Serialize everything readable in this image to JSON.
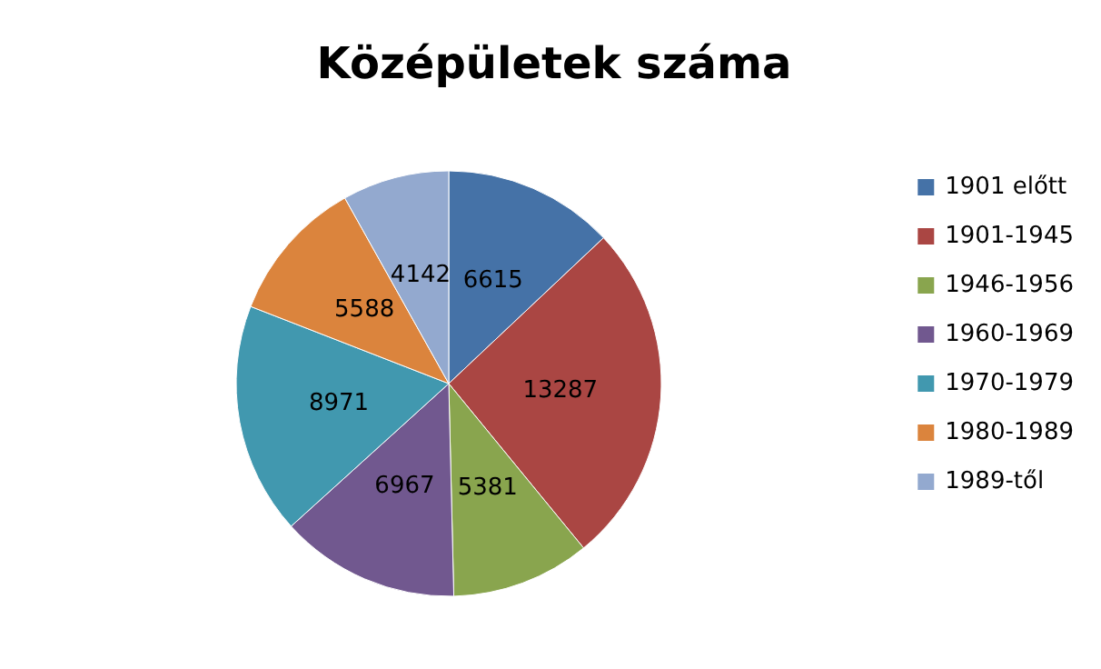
{
  "chart_data": {
    "type": "pie",
    "title": "Középületek száma",
    "categories": [
      "1901 előtt",
      "1901-1945",
      "1946-1956",
      "1960-1969",
      "1970-1979",
      "1980-1989",
      "1989-től"
    ],
    "values": [
      6615,
      13287,
      5381,
      6967,
      8971,
      5588,
      4142
    ],
    "colors": [
      "#4572a7",
      "#aa4643",
      "#89a54e",
      "#71588f",
      "#4198af",
      "#db843d",
      "#93a9cf"
    ],
    "data_labels": true,
    "legend": "right"
  }
}
